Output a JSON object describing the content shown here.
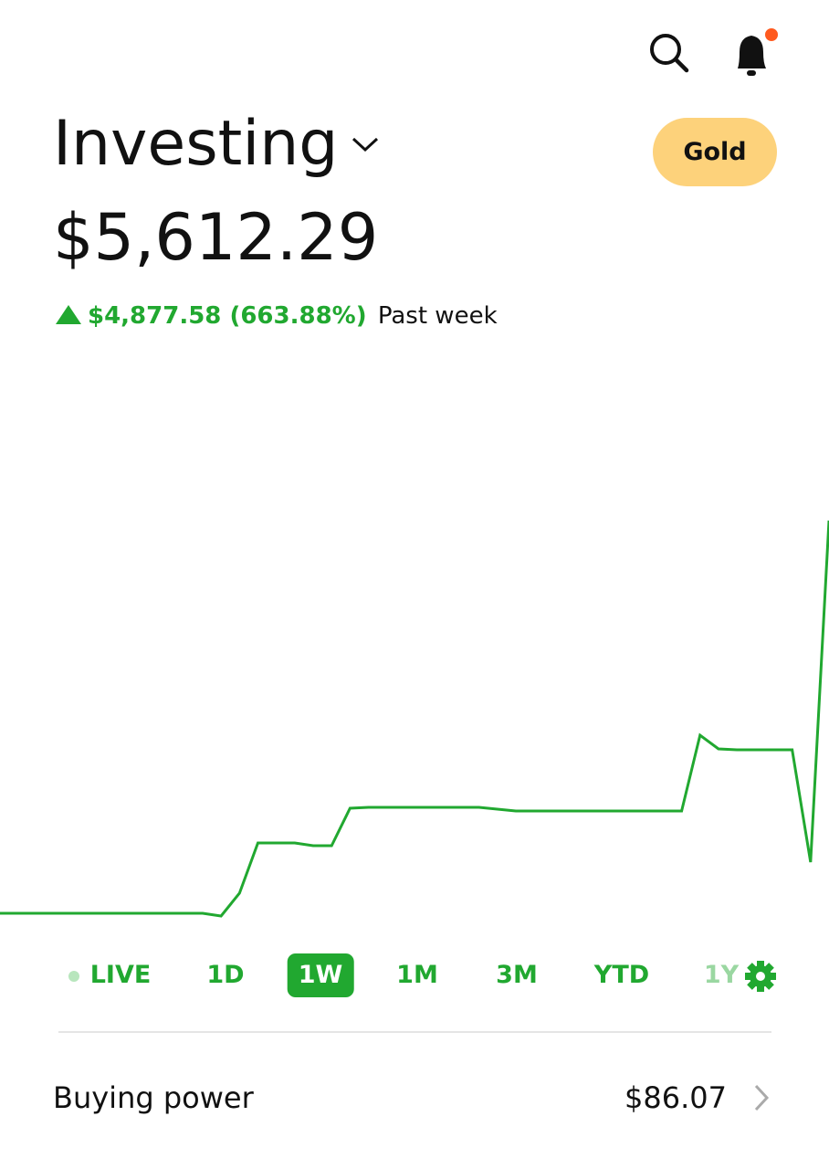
{
  "header": {
    "title": "Investing",
    "balance": "$5,612.29",
    "change": "$4,877.58 (663.88%)",
    "change_period": "Past week",
    "badge": "Gold"
  },
  "chart": {
    "type": "line",
    "color": "#21a830",
    "values": [
      734.71,
      734.71,
      734.71,
      734.71,
      734.71,
      734.71,
      734.71,
      734.71,
      734.71,
      734.71,
      734.71,
      734.71,
      700.68,
      984.26,
      1608.12,
      1608.12,
      1608.12,
      1574.09,
      1574.09,
      2039.16,
      2050.5,
      2050.5,
      2050.5,
      2050.5,
      2050.5,
      2050.5,
      2050.5,
      2027.82,
      2005.13,
      2005.13,
      2005.13,
      2005.13,
      2005.13,
      2005.13,
      2005.13,
      2005.13,
      2005.13,
      2005.13,
      2946.6,
      2776.45,
      2765.11,
      2765.11,
      2765.11,
      2765.11,
      1369.92,
      5612.29
    ]
  },
  "ranges": {
    "items": [
      "LIVE",
      "1D",
      "1W",
      "1M",
      "3M",
      "YTD",
      "1Y"
    ],
    "selected": 2
  },
  "buying_power": {
    "label": "Buying power",
    "value": "$86.07"
  }
}
